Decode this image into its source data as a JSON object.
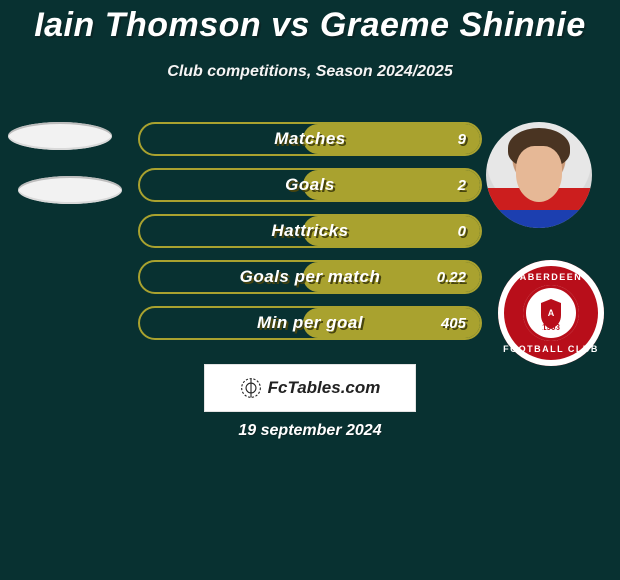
{
  "title": "Iain Thomson vs Graeme Shinnie",
  "subtitle": "Club competitions, Season 2024/2025",
  "date_text": "19 september 2024",
  "brand": "FcTables.com",
  "colors": {
    "background": "#083131",
    "bar_border": "#a9a22f",
    "bar_fill": "#a9a22f",
    "text": "#ffffff",
    "badge_red": "#b80e1a"
  },
  "badge": {
    "top_text": "ABERDEEN",
    "bottom_text": "FOOTBALL CLUB",
    "year": "1903"
  },
  "bars": [
    {
      "label": "Matches",
      "value": "9",
      "fill_pct": 52
    },
    {
      "label": "Goals",
      "value": "2",
      "fill_pct": 52
    },
    {
      "label": "Hattricks",
      "value": "0",
      "fill_pct": 52
    },
    {
      "label": "Goals per match",
      "value": "0.22",
      "fill_pct": 52
    },
    {
      "label": "Min per goal",
      "value": "405",
      "fill_pct": 52
    }
  ]
}
